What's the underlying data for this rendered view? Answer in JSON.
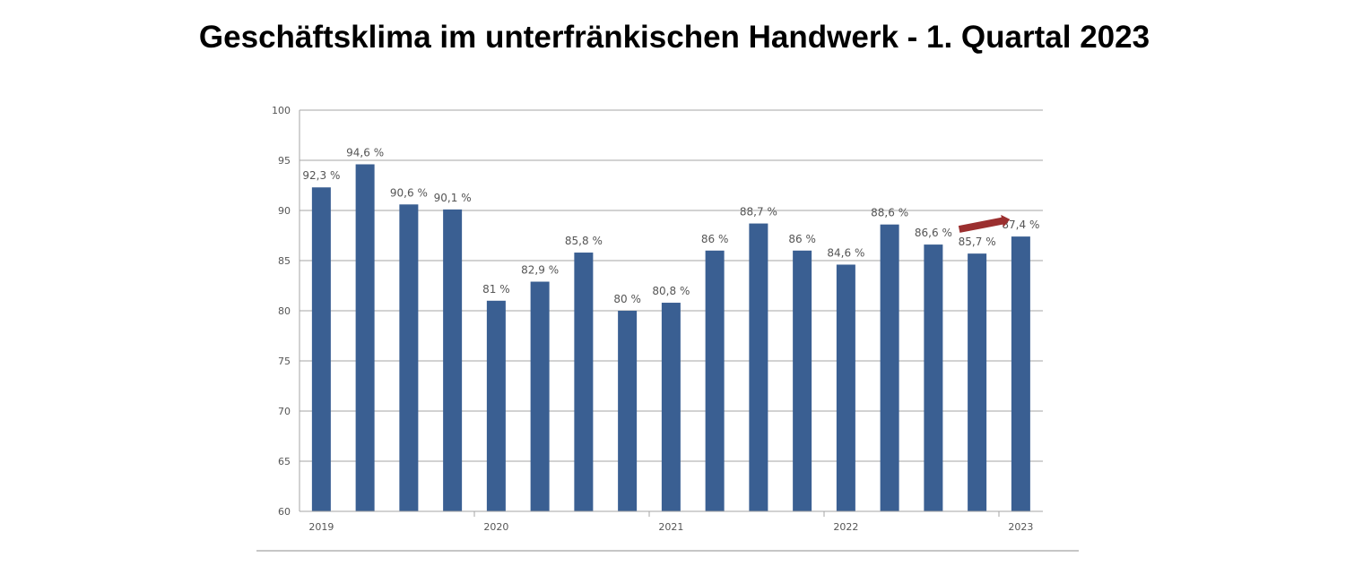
{
  "page_title": "Geschäftsklima im unterfränkischen Handwerk - 1. Quartal 2023",
  "chart_data": {
    "type": "bar",
    "title": "Geschäftsklima im unterfränkischen Handwerk - 1. Quartal 2023",
    "xlabel": "",
    "ylabel": "",
    "ylim": [
      60,
      100
    ],
    "yticks": [
      60,
      65,
      70,
      75,
      80,
      85,
      90,
      95,
      100
    ],
    "grid": true,
    "legend": "none",
    "bar_color": "#3a5f92",
    "arrow_color": "#9b2f2f",
    "year_groups": [
      {
        "label": "2019",
        "start": 0,
        "count": 4
      },
      {
        "label": "2020",
        "start": 4,
        "count": 4
      },
      {
        "label": "2021",
        "start": 8,
        "count": 4
      },
      {
        "label": "2022",
        "start": 12,
        "count": 4
      },
      {
        "label": "2023",
        "start": 16,
        "count": 1
      }
    ],
    "values": [
      92.3,
      94.6,
      90.6,
      90.1,
      81,
      82.9,
      85.8,
      80,
      80.8,
      86,
      88.7,
      86,
      84.6,
      88.6,
      86.6,
      85.7,
      87.4
    ],
    "data_labels": [
      "92,3 %",
      "94,6 %",
      "90,6 %",
      "90,1 %",
      "81 %",
      "82,9 %",
      "85,8 %",
      "80 %",
      "80,8 %",
      "86 %",
      "88,7 %",
      "86 %",
      "84,6 %",
      "88,6 %",
      "86,6 %",
      "85,7 %",
      "87,4 %"
    ],
    "annotation": {
      "type": "arrow",
      "from_index": 15,
      "to_index": 16,
      "meaning": "increase"
    }
  }
}
